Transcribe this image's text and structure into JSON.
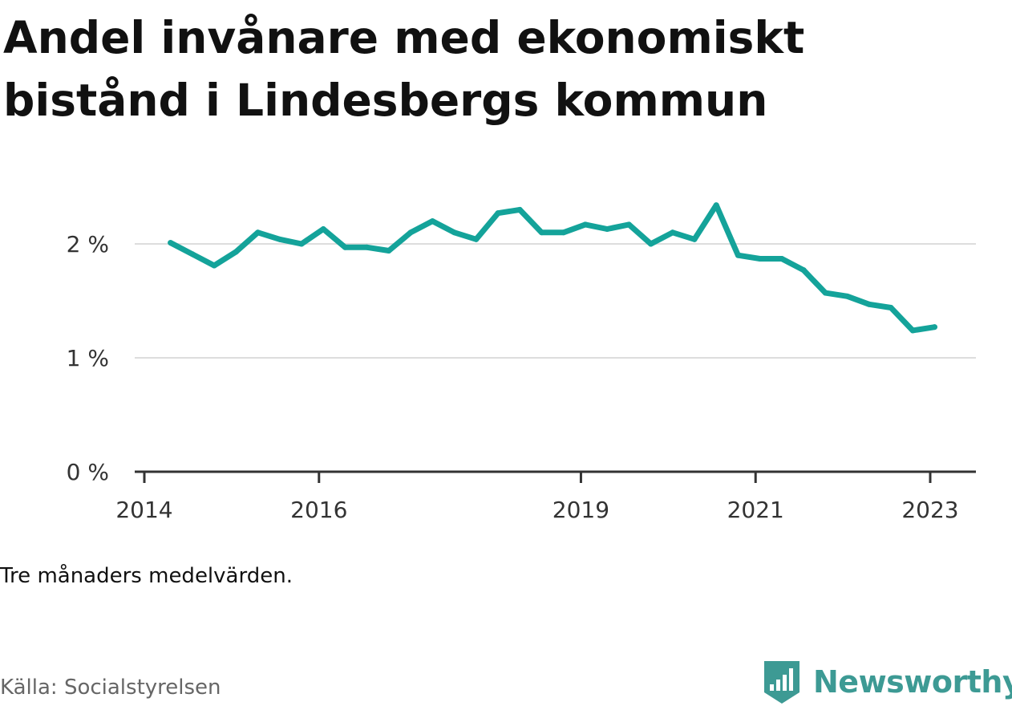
{
  "title": "Andel invånare med ekonomiskt bistånd i Lindesbergs kommun",
  "note": "Tre månaders medelvärden.",
  "source": {
    "label": "Källa:",
    "name": "Socialstyrelsen"
  },
  "brand": {
    "name": "Newsworthy",
    "icon": "newsworthy-logo-icon"
  },
  "colors": {
    "line": "#14a39a",
    "grid": "#dddddd",
    "axis": "#333333",
    "brand": "#3d9a94"
  },
  "chart_data": {
    "type": "line",
    "title": "Andel invånare med ekonomiskt bistånd i Lindesbergs kommun",
    "xlabel": "",
    "ylabel": "",
    "ylim": [
      0,
      2.5
    ],
    "xlim": [
      2013.9,
      2023.5
    ],
    "grid": true,
    "legend": "none",
    "y_ticks": [
      {
        "value": 0,
        "label": "0 %"
      },
      {
        "value": 1,
        "label": "1 %"
      },
      {
        "value": 2,
        "label": "2 %"
      }
    ],
    "x_ticks": [
      {
        "value": 2014,
        "label": "2014"
      },
      {
        "value": 2016,
        "label": "2016"
      },
      {
        "value": 2019,
        "label": "2019"
      },
      {
        "value": 2021,
        "label": "2021"
      },
      {
        "value": 2023,
        "label": "2023"
      }
    ],
    "series": [
      {
        "values": [
          {
            "x": 2014.3,
            "y": 2.01
          },
          {
            "x": 2014.55,
            "y": 1.91
          },
          {
            "x": 2014.8,
            "y": 1.81
          },
          {
            "x": 2015.05,
            "y": 1.93
          },
          {
            "x": 2015.3,
            "y": 2.1
          },
          {
            "x": 2015.55,
            "y": 2.04
          },
          {
            "x": 2015.8,
            "y": 2.0
          },
          {
            "x": 2016.05,
            "y": 2.13
          },
          {
            "x": 2016.3,
            "y": 1.97
          },
          {
            "x": 2016.55,
            "y": 1.97
          },
          {
            "x": 2016.8,
            "y": 1.94
          },
          {
            "x": 2017.05,
            "y": 2.1
          },
          {
            "x": 2017.3,
            "y": 2.2
          },
          {
            "x": 2017.55,
            "y": 2.1
          },
          {
            "x": 2017.8,
            "y": 2.04
          },
          {
            "x": 2018.05,
            "y": 2.27
          },
          {
            "x": 2018.3,
            "y": 2.3
          },
          {
            "x": 2018.55,
            "y": 2.1
          },
          {
            "x": 2018.8,
            "y": 2.1
          },
          {
            "x": 2019.05,
            "y": 2.17
          },
          {
            "x": 2019.3,
            "y": 2.13
          },
          {
            "x": 2019.55,
            "y": 2.17
          },
          {
            "x": 2019.8,
            "y": 2.0
          },
          {
            "x": 2020.05,
            "y": 2.1
          },
          {
            "x": 2020.3,
            "y": 2.04
          },
          {
            "x": 2020.55,
            "y": 2.34
          },
          {
            "x": 2020.8,
            "y": 1.9
          },
          {
            "x": 2021.05,
            "y": 1.87
          },
          {
            "x": 2021.3,
            "y": 1.87
          },
          {
            "x": 2021.55,
            "y": 1.77
          },
          {
            "x": 2021.8,
            "y": 1.57
          },
          {
            "x": 2022.05,
            "y": 1.54
          },
          {
            "x": 2022.3,
            "y": 1.47
          },
          {
            "x": 2022.55,
            "y": 1.44
          },
          {
            "x": 2022.8,
            "y": 1.24
          },
          {
            "x": 2023.05,
            "y": 1.27
          }
        ]
      }
    ]
  }
}
